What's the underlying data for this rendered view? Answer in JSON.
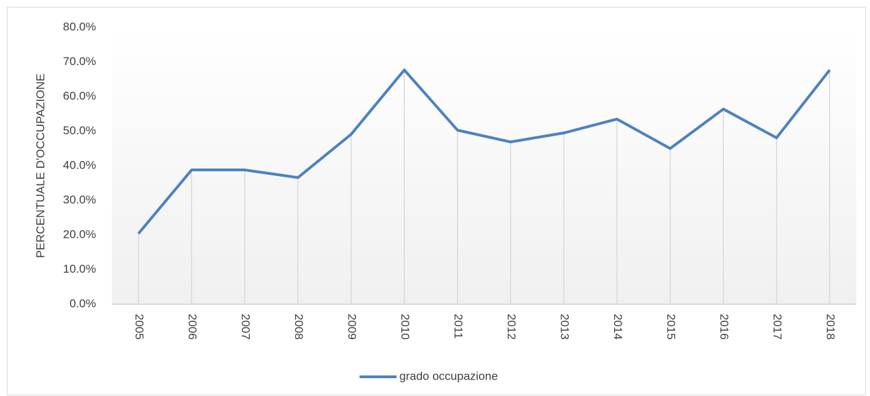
{
  "chart_data": {
    "type": "line",
    "y_label": "PERCENTUALE D'OCCUPAZIONE",
    "categories": [
      "2005",
      "2006",
      "2007",
      "2008",
      "2009",
      "2010",
      "2011",
      "2012",
      "2013",
      "2014",
      "2015",
      "2016",
      "2017",
      "2018"
    ],
    "series": [
      {
        "name": "grado occupazione",
        "color": "#4f81bd",
        "values": [
          20.4,
          38.8,
          38.8,
          36.6,
          49.1,
          67.7,
          50.3,
          46.9,
          49.5,
          53.5,
          45.0,
          56.4,
          48.1,
          67.7
        ]
      }
    ],
    "ylim": [
      0,
      80
    ],
    "yticks": [
      {
        "value": 0,
        "label": "0.0%"
      },
      {
        "value": 10,
        "label": "10.0%"
      },
      {
        "value": 20,
        "label": "20.0%"
      },
      {
        "value": 30,
        "label": "30.0%"
      },
      {
        "value": 40,
        "label": "40.0%"
      },
      {
        "value": 50,
        "label": "50.0%"
      },
      {
        "value": 60,
        "label": "60.0%"
      },
      {
        "value": 70,
        "label": "70.0%"
      },
      {
        "value": 80,
        "label": "80.0%"
      }
    ],
    "drop_lines": true,
    "legend": "bottom"
  }
}
